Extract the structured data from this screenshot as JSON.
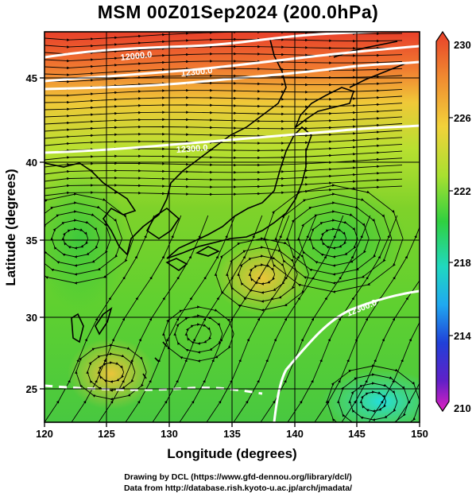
{
  "title": "MSM 00Z01Sep2024 (200.0hPa)",
  "xlabel": "Longitude (degrees)",
  "ylabel": "Latitude  (degrees)",
  "x_ticks": [
    "120",
    "125",
    "130",
    "135",
    "140",
    "145",
    "150"
  ],
  "y_ticks": [
    "25",
    "30",
    "35",
    "40",
    "45"
  ],
  "colorbar": {
    "labels": [
      "230",
      "226",
      "222",
      "218",
      "214",
      "210"
    ],
    "min": 210,
    "max": 230
  },
  "contour_labels": [
    "12000.0",
    "12300.0",
    "12300.0",
    "12300.0"
  ],
  "footer": {
    "line1": "Drawing by DCL (https://www.gfd-dennou.org/library/dcl/)",
    "line2": "Data from http://database.rish.kyoto-u.ac.jp/arch/jmadata/"
  },
  "colors": {
    "warm": "#e8402a",
    "mid": "#7fd22a",
    "cool": "#20d8e8",
    "contour": "#ffffff"
  }
}
